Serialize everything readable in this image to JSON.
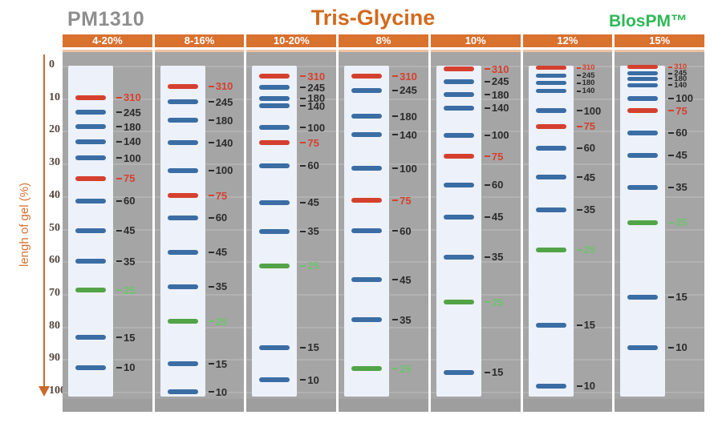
{
  "header": {
    "product": "PM1310",
    "title": "Tris-Glycine",
    "brand": "BlosPM™"
  },
  "axis": {
    "label": "lengh of gel (%)",
    "ticks": [
      0,
      10,
      20,
      30,
      40,
      50,
      60,
      70,
      80,
      90,
      100
    ],
    "min": 0,
    "max": 100
  },
  "colors": {
    "header_orange": "#d9712f",
    "title_orange": "#d2691e",
    "product_gray": "#8e8e8e",
    "brand_green": "#2fb857",
    "panel_gray": "#a5a5a5",
    "gridline_gray": "#b2b2b2",
    "strip_white": "#edf1f9",
    "band_blue": "#3a6da4",
    "band_red": "#d5402e",
    "band_green": "#52a447",
    "label_dark": "#2b2b2b",
    "label_red": "#d5402e",
    "label_green": "#6fc26f",
    "axis_orange": "#c96a2d",
    "tick_text": "#55473e"
  },
  "chart_data": {
    "type": "scatter",
    "subtype": "protein-ladder-gel-migration",
    "title": "Tris-Glycine",
    "ylabel": "lengh of gel (%)",
    "ylim": [
      0,
      100
    ],
    "y_ticks": [
      0,
      10,
      20,
      30,
      40,
      50,
      60,
      70,
      80,
      90,
      100
    ],
    "x_categories": [
      "4-20%",
      "8-16%",
      "10-20%",
      "8%",
      "10%",
      "12%",
      "15%"
    ],
    "marker_sizes_kda": [
      310,
      245,
      180,
      140,
      100,
      75,
      60,
      45,
      35,
      25,
      15,
      10
    ],
    "lanes": [
      {
        "gel": "4-20%",
        "bands": [
          {
            "mw": "310",
            "pos": 9.8,
            "color": "red"
          },
          {
            "mw": "245",
            "pos": 14.3,
            "color": "blue"
          },
          {
            "mw": "180",
            "pos": 18.7,
            "color": "blue"
          },
          {
            "mw": "140",
            "pos": 23.3,
            "color": "blue"
          },
          {
            "mw": "100",
            "pos": 28.3,
            "color": "blue"
          },
          {
            "mw": "75",
            "pos": 34.6,
            "color": "red"
          },
          {
            "mw": "60",
            "pos": 41.5,
            "color": "blue"
          },
          {
            "mw": "45",
            "pos": 50.6,
            "color": "blue"
          },
          {
            "mw": "35",
            "pos": 60.0,
            "color": "blue"
          },
          {
            "mw": "25",
            "pos": 68.8,
            "color": "green"
          },
          {
            "mw": "15",
            "pos": 83.3,
            "color": "blue"
          },
          {
            "mw": "10",
            "pos": 92.6,
            "color": "blue"
          }
        ]
      },
      {
        "gel": "8-16%",
        "bands": [
          {
            "mw": "310",
            "pos": 6.3,
            "color": "red"
          },
          {
            "mw": "245",
            "pos": 11.1,
            "color": "blue"
          },
          {
            "mw": "180",
            "pos": 16.8,
            "color": "blue"
          },
          {
            "mw": "140",
            "pos": 23.7,
            "color": "blue"
          },
          {
            "mw": "100",
            "pos": 32.1,
            "color": "blue"
          },
          {
            "mw": "75",
            "pos": 39.9,
            "color": "red"
          },
          {
            "mw": "60",
            "pos": 46.6,
            "color": "blue"
          },
          {
            "mw": "45",
            "pos": 57.2,
            "color": "blue"
          },
          {
            "mw": "35",
            "pos": 67.7,
            "color": "blue"
          },
          {
            "mw": "25",
            "pos": 78.4,
            "color": "green"
          },
          {
            "mw": "15",
            "pos": 91.5,
            "color": "blue"
          },
          {
            "mw": "10",
            "pos": 100.0,
            "color": "blue"
          }
        ]
      },
      {
        "gel": "10-20%",
        "bands": [
          {
            "mw": "310",
            "pos": 3.2,
            "color": "red"
          },
          {
            "mw": "245",
            "pos": 6.7,
            "color": "blue"
          },
          {
            "mw": "180",
            "pos": 10.0,
            "color": "blue"
          },
          {
            "mw": "140",
            "pos": 12.3,
            "color": "blue"
          },
          {
            "mw": "100",
            "pos": 19.0,
            "color": "blue"
          },
          {
            "mw": "75",
            "pos": 23.7,
            "color": "red"
          },
          {
            "mw": "60",
            "pos": 30.6,
            "color": "blue"
          },
          {
            "mw": "45",
            "pos": 41.9,
            "color": "blue"
          },
          {
            "mw": "35",
            "pos": 50.8,
            "color": "blue"
          },
          {
            "mw": "25",
            "pos": 61.4,
            "color": "green"
          },
          {
            "mw": "15",
            "pos": 86.4,
            "color": "blue"
          },
          {
            "mw": "10",
            "pos": 96.4,
            "color": "blue"
          }
        ]
      },
      {
        "gel": "8%",
        "bands": [
          {
            "mw": "310",
            "pos": 3.2,
            "color": "red"
          },
          {
            "mw": "245",
            "pos": 7.5,
            "color": "blue"
          },
          {
            "mw": "180",
            "pos": 15.5,
            "color": "blue"
          },
          {
            "mw": "140",
            "pos": 21.2,
            "color": "blue"
          },
          {
            "mw": "100",
            "pos": 31.5,
            "color": "blue"
          },
          {
            "mw": "75",
            "pos": 41.4,
            "color": "red"
          },
          {
            "mw": "60",
            "pos": 50.7,
            "color": "blue"
          },
          {
            "mw": "45",
            "pos": 65.7,
            "color": "blue"
          },
          {
            "mw": "35",
            "pos": 78.0,
            "color": "blue"
          },
          {
            "mw": "25",
            "pos": 92.9,
            "color": "green"
          }
        ]
      },
      {
        "gel": "10%",
        "bands": [
          {
            "mw": "310",
            "pos": 1.0,
            "color": "red"
          },
          {
            "mw": "245",
            "pos": 4.8,
            "color": "blue"
          },
          {
            "mw": "180",
            "pos": 8.9,
            "color": "blue"
          },
          {
            "mw": "140",
            "pos": 13.0,
            "color": "blue"
          },
          {
            "mw": "100",
            "pos": 21.3,
            "color": "blue"
          },
          {
            "mw": "75",
            "pos": 27.8,
            "color": "red"
          },
          {
            "mw": "60",
            "pos": 36.6,
            "color": "blue"
          },
          {
            "mw": "45",
            "pos": 46.4,
            "color": "blue"
          },
          {
            "mw": "35",
            "pos": 58.6,
            "color": "blue"
          },
          {
            "mw": "25",
            "pos": 72.5,
            "color": "green"
          },
          {
            "mw": "15",
            "pos": 94.1,
            "color": "blue"
          }
        ]
      },
      {
        "gel": "12%",
        "bands": [
          {
            "mw": "310",
            "pos": 0.7,
            "color": "red",
            "small": true
          },
          {
            "mw": "245",
            "pos": 3.0,
            "color": "blue",
            "small": true
          },
          {
            "mw": "180",
            "pos": 5.3,
            "color": "blue",
            "small": true
          },
          {
            "mw": "140",
            "pos": 7.8,
            "color": "blue",
            "small": true
          },
          {
            "mw": "100",
            "pos": 13.8,
            "color": "blue"
          },
          {
            "mw": "75",
            "pos": 18.6,
            "color": "red"
          },
          {
            "mw": "60",
            "pos": 25.3,
            "color": "blue"
          },
          {
            "mw": "45",
            "pos": 34.2,
            "color": "blue"
          },
          {
            "mw": "35",
            "pos": 44.2,
            "color": "blue"
          },
          {
            "mw": "25",
            "pos": 56.4,
            "color": "green"
          },
          {
            "mw": "15",
            "pos": 79.6,
            "color": "blue"
          },
          {
            "mw": "10",
            "pos": 98.2,
            "color": "blue"
          }
        ]
      },
      {
        "gel": "15%",
        "bands": [
          {
            "mw": "310",
            "pos": 0.4,
            "color": "red",
            "small": true
          },
          {
            "mw": "245",
            "pos": 2.4,
            "color": "blue",
            "small": true
          },
          {
            "mw": "180",
            "pos": 4.0,
            "color": "blue",
            "small": true
          },
          {
            "mw": "140",
            "pos": 5.9,
            "color": "blue",
            "small": true
          },
          {
            "mw": "100",
            "pos": 10.0,
            "color": "blue"
          },
          {
            "mw": "75",
            "pos": 13.8,
            "color": "red"
          },
          {
            "mw": "60",
            "pos": 20.6,
            "color": "blue"
          },
          {
            "mw": "45",
            "pos": 27.4,
            "color": "blue"
          },
          {
            "mw": "35",
            "pos": 37.3,
            "color": "blue"
          },
          {
            "mw": "25",
            "pos": 48.1,
            "color": "green"
          },
          {
            "mw": "15",
            "pos": 71.0,
            "color": "blue"
          },
          {
            "mw": "10",
            "pos": 86.4,
            "color": "blue"
          }
        ]
      }
    ]
  }
}
